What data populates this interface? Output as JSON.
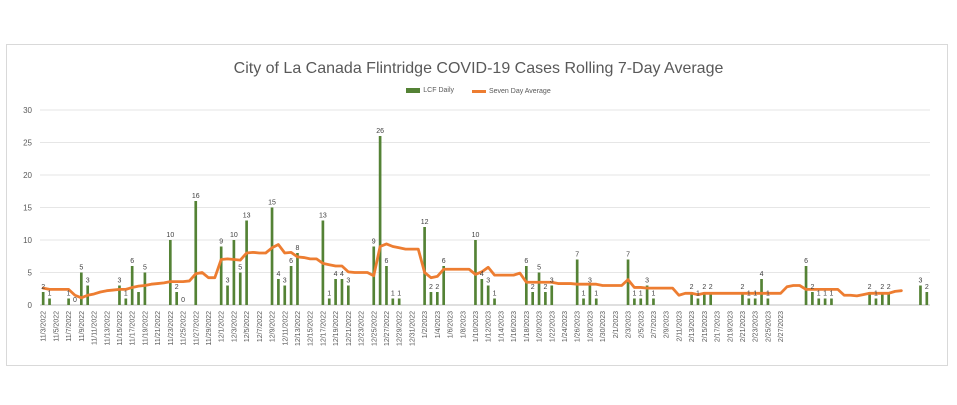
{
  "chart_data": {
    "type": "bar",
    "title": "City of La Canada Flintridge COVID-19 Cases Rolling 7-Day Average",
    "xlabel": "",
    "ylabel": "",
    "ylim": [
      0,
      30
    ],
    "yticks": [
      0,
      5,
      10,
      15,
      20,
      25,
      30
    ],
    "grid": true,
    "legend_position": "top",
    "start_date": "11/3/2022",
    "series": [
      {
        "name": "LCF Daily",
        "type": "bar",
        "color": "#548235",
        "values": [
          2,
          1,
          0,
          0,
          1,
          0,
          5,
          3,
          0,
          0,
          0,
          0,
          3,
          1,
          6,
          2,
          5,
          0,
          0,
          0,
          10,
          2,
          0,
          0,
          16,
          0,
          0,
          0,
          9,
          3,
          10,
          5,
          13,
          0,
          0,
          0,
          15,
          4,
          3,
          6,
          8,
          0,
          0,
          0,
          13,
          1,
          4,
          4,
          3,
          0,
          0,
          0,
          9,
          26,
          6,
          1,
          1,
          0,
          0,
          0,
          12,
          2,
          2,
          6,
          0,
          0,
          0,
          0,
          10,
          4,
          3,
          1,
          0,
          0,
          0,
          0,
          6,
          2,
          5,
          2,
          3,
          0,
          0,
          0,
          7,
          1,
          3,
          1,
          0,
          0,
          0,
          0,
          7,
          1,
          1,
          3,
          1,
          0,
          0,
          0,
          0,
          0,
          2,
          1,
          2,
          2,
          0,
          0,
          0,
          0,
          2,
          1,
          1,
          4,
          1,
          0,
          0,
          0,
          0,
          0,
          6,
          2,
          1,
          1,
          1,
          0,
          0,
          0,
          0,
          0,
          2,
          1,
          2,
          2,
          0,
          0,
          0,
          0,
          3,
          2
        ],
        "labels": [
          "2",
          "1",
          "",
          "",
          "1",
          "0",
          "5",
          "3",
          "",
          "",
          "",
          "",
          "3",
          "1",
          "6",
          "",
          "5",
          "",
          "",
          "",
          "10",
          "2",
          "0",
          "",
          "16",
          "",
          "",
          "",
          "9",
          "3",
          "10",
          "5",
          "13",
          "",
          "",
          "",
          "15",
          "4",
          "3",
          "6",
          "8",
          "",
          "",
          "",
          "13",
          "1",
          "4",
          "4",
          "3",
          "",
          "",
          "",
          "9",
          "26",
          "6",
          "1",
          "1",
          "",
          "",
          "",
          "12",
          "2",
          "2",
          "6",
          "",
          "",
          "",
          "",
          "10",
          "4",
          "3",
          "1",
          "",
          "",
          "",
          "",
          "6",
          "2",
          "5",
          "2",
          "3",
          "",
          "",
          "",
          "7",
          "1",
          "3",
          "1",
          "",
          "",
          "",
          "",
          "7",
          "1",
          "1",
          "3",
          "1",
          "",
          "",
          "",
          "",
          "",
          "2",
          "1",
          "2",
          "2",
          "",
          "",
          "",
          "",
          "2",
          "1",
          "1",
          "4",
          "1",
          "",
          "",
          "",
          "",
          "",
          "6",
          "2",
          "1",
          "1",
          "1",
          "",
          "",
          "",
          "",
          "",
          "2",
          "1",
          "2",
          "2",
          "",
          "",
          "",
          "",
          "3",
          "2"
        ]
      },
      {
        "name": "Seven Day Average",
        "type": "line",
        "color": "#ED7D31",
        "values": [
          2.6,
          2.4,
          2.4,
          2.4,
          2.4,
          1.5,
          1.1,
          1.5,
          1.7,
          2.0,
          2.2,
          2.3,
          2.4,
          2.4,
          2.7,
          2.9,
          3.0,
          3.2,
          3.3,
          3.4,
          3.6,
          3.6,
          3.6,
          3.7,
          4.8,
          5.0,
          4.2,
          4.2,
          7.0,
          7.1,
          7.0,
          6.9,
          8.0,
          8.1,
          8.0,
          8.0,
          8.8,
          9.3,
          8.0,
          8.1,
          7.4,
          7.3,
          7.1,
          7.1,
          6.4,
          6.2,
          6.0,
          6.0,
          5.1,
          5.0,
          5.0,
          5.0,
          4.5,
          9.0,
          9.4,
          9.0,
          8.8,
          8.6,
          8.6,
          8.6,
          5.0,
          4.2,
          4.4,
          5.5,
          5.5,
          5.5,
          5.5,
          5.5,
          4.7,
          5.1,
          5.8,
          4.6,
          4.6,
          4.6,
          4.6,
          4.9,
          3.5,
          3.5,
          3.5,
          3.5,
          3.5,
          3.3,
          3.3,
          3.3,
          3.2,
          3.2,
          3.2,
          3.2,
          3.0,
          3.0,
          3.0,
          3.0,
          3.9,
          2.7,
          2.7,
          2.6,
          2.6,
          2.6,
          2.6,
          2.6,
          1.5,
          1.8,
          1.8,
          1.6,
          1.8,
          1.8,
          1.8,
          1.8,
          1.8,
          1.8,
          1.8,
          1.8,
          1.8,
          1.8,
          1.8,
          1.8,
          1.8,
          2.8,
          3.0,
          3.0,
          2.4,
          2.4,
          2.4,
          2.4,
          2.4,
          2.4,
          1.5,
          1.5,
          1.4,
          1.6,
          1.8,
          1.8,
          1.8,
          1.8,
          2.1,
          2.2
        ]
      }
    ],
    "xticks": [
      "11/3/2022",
      "11/5/2022",
      "11/7/2022",
      "11/9/2022",
      "11/11/2022",
      "11/13/2022",
      "11/15/2022",
      "11/17/2022",
      "11/19/2022",
      "11/21/2022",
      "11/23/2022",
      "11/25/2022",
      "11/27/2022",
      "11/29/2022",
      "12/1/2022",
      "12/3/2022",
      "12/5/2022",
      "12/7/2022",
      "12/9/2022",
      "12/11/2022",
      "12/13/2022",
      "12/15/2022",
      "12/17/2022",
      "12/19/2022",
      "12/21/2022",
      "12/23/2022",
      "12/25/2022",
      "12/27/2022",
      "12/29/2022",
      "12/31/2022",
      "1/2/2023",
      "1/4/2023",
      "1/6/2023",
      "1/8/2023",
      "1/10/2023",
      "1/12/2023",
      "1/14/2023",
      "1/16/2023",
      "1/18/2023",
      "1/20/2023",
      "1/22/2023",
      "1/24/2023",
      "1/26/2023",
      "1/28/2023",
      "1/30/2023",
      "2/1/2023",
      "2/3/2023",
      "2/5/2023",
      "2/7/2023",
      "2/9/2023",
      "2/11/2023",
      "2/13/2023",
      "2/15/2023",
      "2/17/2023",
      "2/19/2023",
      "2/21/2023",
      "2/23/2023",
      "2/25/2023",
      "2/27/2023"
    ]
  }
}
